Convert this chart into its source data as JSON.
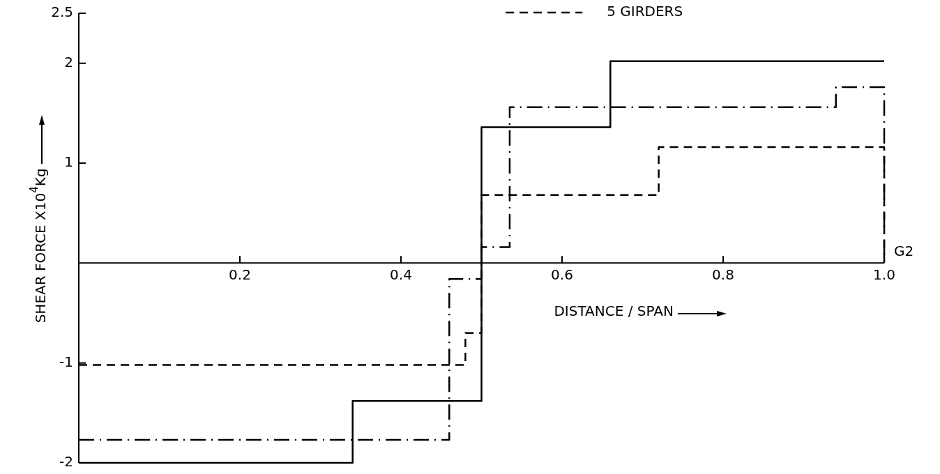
{
  "chart_data": {
    "type": "step",
    "xlabel": "DISTANCE / SPAN",
    "ylabel": "SHEAR FORCE X10$^{4}$Kg",
    "xlim": [
      0,
      1.0
    ],
    "ylim": [
      -2,
      2.5
    ],
    "xticks": [
      0.2,
      0.4,
      0.6,
      0.8,
      {
        "value": 1.0,
        "label": "1.0"
      }
    ],
    "yticks": [
      -2,
      -1,
      1,
      2,
      2.5
    ],
    "grid": false,
    "legend": "top right",
    "marker": "none",
    "annotations": [
      {
        "text": "G2",
        "x": 1.0,
        "y": 0
      }
    ],
    "series": [
      {
        "color": "#000000",
        "line_style": "solid",
        "x": [
          0,
          0.34,
          0.5,
          0.66,
          1.0
        ],
        "values": [
          -2,
          -1.38,
          1.36,
          2.02,
          2.02
        ]
      },
      {
        "color": "#000000",
        "line_style": "dashdot",
        "x": [
          0,
          0.46,
          0.5,
          0.535,
          0.94,
          1.0,
          1.0
        ],
        "values": [
          -1.77,
          -0.16,
          0.16,
          1.56,
          1.76,
          1.76,
          0
        ]
      },
      {
        "name": "5 GIRDERS",
        "color": "#000000",
        "line_style": "dashed",
        "x": [
          0,
          0.48,
          0.5,
          0.72,
          1.0,
          1.0
        ],
        "values": [
          -1.02,
          -0.7,
          0.68,
          1.16,
          1.16,
          0
        ]
      }
    ]
  }
}
